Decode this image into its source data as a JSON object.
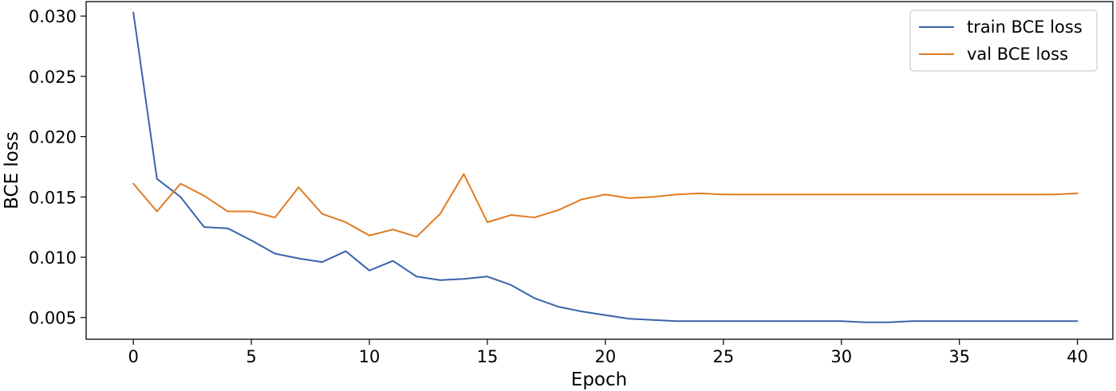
{
  "chart_data": {
    "type": "line",
    "title": "",
    "xlabel": "Epoch",
    "ylabel": "BCE loss",
    "xlim": [
      -2,
      41.5
    ],
    "ylim": [
      0.0032,
      0.0312
    ],
    "xticks": [
      0,
      5,
      10,
      15,
      20,
      25,
      30,
      35,
      40
    ],
    "xtick_labels": [
      "0",
      "5",
      "10",
      "15",
      "20",
      "25",
      "30",
      "35",
      "40"
    ],
    "yticks": [
      0.005,
      0.01,
      0.015,
      0.02,
      0.025,
      0.03
    ],
    "ytick_labels": [
      "0.005",
      "0.010",
      "0.015",
      "0.020",
      "0.025",
      "0.030"
    ],
    "grid": false,
    "legend_position": "top-right",
    "x": [
      0,
      1,
      2,
      3,
      4,
      5,
      6,
      7,
      8,
      9,
      10,
      11,
      12,
      13,
      14,
      15,
      16,
      17,
      18,
      19,
      20,
      21,
      22,
      23,
      24,
      25,
      26,
      27,
      28,
      29,
      30,
      31,
      32,
      33,
      34,
      35,
      36,
      37,
      38,
      39,
      40
    ],
    "series": [
      {
        "name": "train BCE loss",
        "color": "#3a62ab",
        "values": [
          0.0303,
          0.0165,
          0.015,
          0.0125,
          0.0124,
          0.0114,
          0.0103,
          0.0099,
          0.0096,
          0.0105,
          0.0089,
          0.0097,
          0.0084,
          0.0081,
          0.0082,
          0.0084,
          0.0077,
          0.0066,
          0.0059,
          0.0055,
          0.0052,
          0.0049,
          0.0048,
          0.0047,
          0.0047,
          0.0047,
          0.0047,
          0.0047,
          0.0047,
          0.0047,
          0.0047,
          0.0046,
          0.0046,
          0.0047,
          0.0047,
          0.0047,
          0.0047,
          0.0047,
          0.0047,
          0.0047,
          0.0047
        ]
      },
      {
        "name": "val BCE loss",
        "color": "#e07b22",
        "values": [
          0.0161,
          0.0138,
          0.0161,
          0.0151,
          0.0138,
          0.0138,
          0.0133,
          0.0158,
          0.0136,
          0.0129,
          0.0118,
          0.0123,
          0.0117,
          0.0136,
          0.0169,
          0.0129,
          0.0135,
          0.0133,
          0.0139,
          0.0148,
          0.0152,
          0.0149,
          0.015,
          0.0152,
          0.0153,
          0.0152,
          0.0152,
          0.0152,
          0.0152,
          0.0152,
          0.0152,
          0.0152,
          0.0152,
          0.0152,
          0.0152,
          0.0152,
          0.0152,
          0.0152,
          0.0152,
          0.0152,
          0.0153
        ]
      }
    ]
  }
}
